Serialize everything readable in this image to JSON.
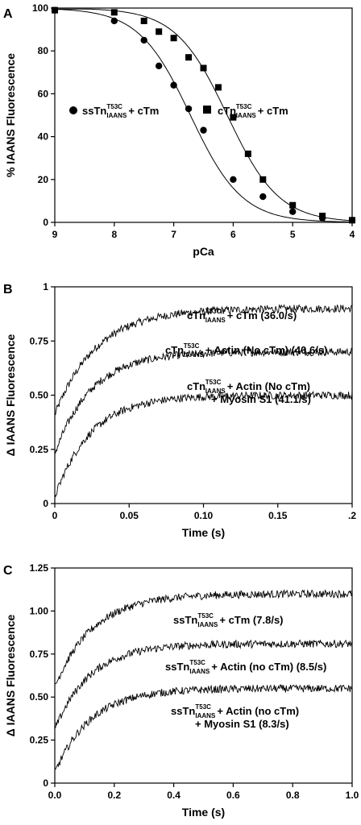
{
  "chart_data": [
    {
      "panel": "A",
      "type": "scatter",
      "xlabel": "pCa",
      "ylabel": "% IAANS Fluorescence",
      "xlim": [
        9,
        4
      ],
      "ylim": [
        0,
        100
      ],
      "x_ticks": [
        "9",
        "8",
        "7",
        "6",
        "5",
        "4"
      ],
      "y_ticks": [
        "0",
        "20",
        "40",
        "60",
        "80",
        "100"
      ],
      "fit_curves": true,
      "series": [
        {
          "name": "ssTn IAANS T53C + cTm",
          "legend": {
            "main": "ssTn",
            "sup": "T53C",
            "sub": "IAANS",
            "tail": "+ cTm"
          },
          "marker": "circle",
          "pca50": 6.72,
          "hill": 1.0,
          "x": [
            9.0,
            8.0,
            7.5,
            7.25,
            7.0,
            6.75,
            6.5,
            6.0,
            5.5,
            5.0,
            4.5,
            4.0
          ],
          "y": [
            99,
            94,
            85,
            73,
            64,
            53,
            43,
            20,
            12,
            5,
            2,
            1
          ]
        },
        {
          "name": "cTn IAANS T53C + cTm",
          "legend": {
            "main": "cTn",
            "sup": "T53C",
            "sub": "IAANS",
            "tail": "+ cTm"
          },
          "marker": "square",
          "pca50": 6.1,
          "hill": 1.0,
          "x": [
            9.0,
            8.0,
            7.5,
            7.25,
            7.0,
            6.75,
            6.5,
            6.25,
            6.0,
            5.75,
            5.5,
            5.0,
            4.5,
            4.0
          ],
          "y": [
            99,
            98,
            94,
            89,
            86,
            77,
            72,
            63,
            49,
            32,
            20,
            8,
            3,
            1
          ]
        }
      ]
    },
    {
      "panel": "B",
      "type": "line",
      "xlabel": "Time (s)",
      "ylabel": "Δ IAANS Fluorescence",
      "xlim": [
        0,
        0.2
      ],
      "ylim": [
        0,
        1
      ],
      "x_ticks": [
        "0",
        "0.05",
        "0.10",
        "0.15",
        ".2"
      ],
      "y_ticks": [
        "0",
        "0.25",
        "0.50",
        "0.75",
        "1"
      ],
      "series": [
        {
          "label_main": "cTn",
          "label_sup": "T53C",
          "label_sub": "IAANS",
          "label_tail": "+ cTm  (36.0/s)",
          "label_line2": "",
          "rate": 36.0,
          "y_start": 0.41,
          "y_end": 0.9
        },
        {
          "label_main": "cTn",
          "label_sup": "T53C",
          "label_sub": "IAANS",
          "label_tail": "+ Actin (No cTm) (40.6/s)",
          "label_line2": "",
          "rate": 40.6,
          "y_start": 0.23,
          "y_end": 0.7
        },
        {
          "label_main": "cTn",
          "label_sup": "T53C",
          "label_sub": "IAANS",
          "label_tail": "+ Actin (No cTm)",
          "label_line2": "+ Myosin S1 (41.1/s)",
          "rate": 41.1,
          "y_start": 0.03,
          "y_end": 0.5
        }
      ]
    },
    {
      "panel": "C",
      "type": "line",
      "xlabel": "Time (s)",
      "ylabel": "Δ IAANS Fluorescence",
      "xlim": [
        0,
        1.0
      ],
      "ylim": [
        0,
        1.25
      ],
      "x_ticks": [
        "0.0",
        "0.2",
        "0.4",
        "0.6",
        "0.8",
        "1.0"
      ],
      "y_ticks": [
        "0",
        "0.25",
        "0.50",
        "0.75",
        "1.00",
        "1.25"
      ],
      "series": [
        {
          "label_main": "ssTn",
          "label_sup": "T53C",
          "label_sub": "IAANS",
          "label_tail": "+ cTm  (7.8/s)",
          "label_line2": "",
          "rate": 7.8,
          "y_start": 0.56,
          "y_end": 1.1
        },
        {
          "label_main": "ssTn",
          "label_sup": "T53C",
          "label_sub": "IAANS",
          "label_tail": "+ Actin (no cTm) (8.5/s)",
          "label_line2": "",
          "rate": 8.5,
          "y_start": 0.31,
          "y_end": 0.81
        },
        {
          "label_main": "ssTn",
          "label_sup": "T53C",
          "label_sub": "IAANS",
          "label_tail": "+ Actin (no cTm)",
          "label_line2": "+ Myosin S1 (8.3/s)",
          "rate": 8.3,
          "y_start": 0.06,
          "y_end": 0.55
        }
      ]
    }
  ]
}
